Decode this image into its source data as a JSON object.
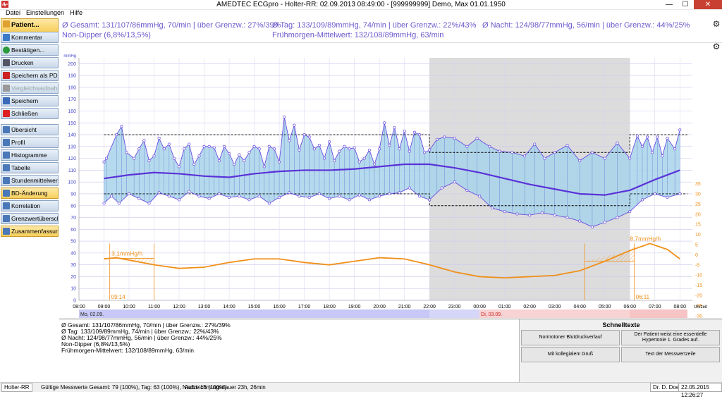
{
  "window": {
    "title": "AMEDTEC ECGpro   -   Holter-RR: 02.09.2013 08:49:00  -  [999999999] Demo, Max 01.01.1950",
    "minimize": "—",
    "maximize": "☐",
    "close": "✕"
  },
  "menu": [
    "Datei",
    "Einstellungen",
    "Hilfe"
  ],
  "sidebar": {
    "items": [
      {
        "label": "Patient...",
        "icon": "patient-icon",
        "state": "patient"
      },
      {
        "label": "Kommentar",
        "icon": "comment-icon",
        "state": "normal"
      },
      {
        "label": "Bestätigen...",
        "icon": "check-icon",
        "state": "normal"
      },
      {
        "label": "Drucken",
        "icon": "printer-icon",
        "state": "normal"
      },
      {
        "label": "Speichern als PDF...",
        "icon": "pdf-icon",
        "state": "normal"
      },
      {
        "label": "Vergleichsaufnahm...",
        "icon": "compare-icon",
        "state": "disabled"
      },
      {
        "label": "Speichern",
        "icon": "save-icon",
        "state": "normal"
      },
      {
        "label": "Schließen",
        "icon": "close-icon",
        "state": "normal"
      },
      {
        "label": "Übersicht",
        "icon": "page-icon",
        "state": "normal"
      },
      {
        "label": "Profil",
        "icon": "page-icon",
        "state": "normal"
      },
      {
        "label": "Histogramme",
        "icon": "page-icon",
        "state": "normal"
      },
      {
        "label": "Tabelle",
        "icon": "page-icon",
        "state": "normal"
      },
      {
        "label": "Stundenmittelwerte",
        "icon": "page-icon",
        "state": "normal"
      },
      {
        "label": "BD-Änderung",
        "icon": "page-icon",
        "state": "active"
      },
      {
        "label": "Korrelation",
        "icon": "page-icon",
        "state": "normal"
      },
      {
        "label": "Grenzwertüberschr...",
        "icon": "page-icon",
        "state": "normal"
      },
      {
        "label": "Zusammenfassung",
        "icon": "page-icon",
        "state": "active"
      }
    ]
  },
  "summary": {
    "gesamt": "Ø Gesamt: 131/107/86mmHg, 70/min | über Grenzw.: 27%/39%",
    "tag": "Ø Tag: 133/109/89mmHg, 74/min | über Grenzw.: 22%/43%",
    "nacht": "Ø Nacht: 124/98/77mmHg, 56/min | über Grenzw.: 44%/25%",
    "dipper": "Non-Dipper (6,8%/13,5%)",
    "morgen": "Frühmorgen-Mittelwert: 132/108/89mmHg, 63/min"
  },
  "chart_data": {
    "type": "line",
    "left_axis_unit": "mmHg",
    "left_ticks": [
      200,
      190,
      180,
      170,
      160,
      150,
      140,
      130,
      120,
      110,
      100,
      90,
      80,
      70,
      60,
      50,
      40,
      30,
      20,
      10,
      0
    ],
    "right_ticks": [
      35,
      30,
      25,
      20,
      15,
      10,
      5,
      0,
      -5,
      -10,
      -15,
      -20,
      -25,
      -30
    ],
    "x_ticks": [
      "08:00",
      "09:00",
      "10:00",
      "11:00",
      "12:00",
      "13:00",
      "14:00",
      "15:00",
      "16:00",
      "17:00",
      "18:00",
      "19:00",
      "20:00",
      "21:00",
      "22:00",
      "23:00",
      "00:00",
      "01:00",
      "02:00",
      "03:00",
      "04:00",
      "05:00",
      "06:00",
      "07:00",
      "08:00"
    ],
    "x_axis_label": "Uhrzeit",
    "day_labels": [
      "Mo, 02.09.",
      "Di, 03.09."
    ],
    "night_start_hour": 22,
    "night_end_hour": 6,
    "day_limits": {
      "systolic": 140,
      "diastolic": 90
    },
    "night_limits": {
      "systolic": 125,
      "diastolic": 80
    },
    "systolic": [
      [
        9.0,
        117
      ],
      [
        9.1,
        120
      ],
      [
        9.5,
        140
      ],
      [
        9.7,
        147
      ],
      [
        9.9,
        125
      ],
      [
        10.2,
        120
      ],
      [
        10.4,
        128
      ],
      [
        10.6,
        135
      ],
      [
        10.8,
        118
      ],
      [
        11.0,
        122
      ],
      [
        11.2,
        137
      ],
      [
        11.4,
        128
      ],
      [
        11.6,
        132
      ],
      [
        11.8,
        120
      ],
      [
        12.0,
        113
      ],
      [
        12.2,
        128
      ],
      [
        12.4,
        132
      ],
      [
        12.6,
        115
      ],
      [
        12.8,
        122
      ],
      [
        13.0,
        130
      ],
      [
        13.2,
        130
      ],
      [
        13.4,
        129
      ],
      [
        13.6,
        118
      ],
      [
        13.8,
        130
      ],
      [
        14.0,
        124
      ],
      [
        14.2,
        115
      ],
      [
        14.4,
        123
      ],
      [
        14.6,
        118
      ],
      [
        14.8,
        125
      ],
      [
        15.0,
        130
      ],
      [
        15.2,
        128
      ],
      [
        15.4,
        113
      ],
      [
        15.6,
        130
      ],
      [
        15.8,
        128
      ],
      [
        16.0,
        117
      ],
      [
        16.2,
        155
      ],
      [
        16.4,
        135
      ],
      [
        16.6,
        148
      ],
      [
        16.8,
        127
      ],
      [
        17.0,
        140
      ],
      [
        17.2,
        138
      ],
      [
        17.4,
        128
      ],
      [
        17.6,
        131
      ],
      [
        17.8,
        120
      ],
      [
        18.0,
        134
      ],
      [
        18.2,
        118
      ],
      [
        18.4,
        126
      ],
      [
        18.6,
        130
      ],
      [
        18.8,
        128
      ],
      [
        19.0,
        129
      ],
      [
        19.2,
        117
      ],
      [
        19.4,
        120
      ],
      [
        19.6,
        127
      ],
      [
        19.8,
        115
      ],
      [
        20.0,
        128
      ],
      [
        20.2,
        150
      ],
      [
        20.4,
        131
      ],
      [
        20.6,
        146
      ],
      [
        20.8,
        128
      ],
      [
        21.0,
        143
      ],
      [
        21.2,
        126
      ],
      [
        21.4,
        142
      ],
      [
        21.6,
        140
      ],
      [
        21.8,
        125
      ],
      [
        22.0,
        127
      ],
      [
        22.3,
        136
      ],
      [
        22.6,
        138
      ],
      [
        23.0,
        137
      ],
      [
        23.5,
        130
      ],
      [
        23.9,
        137
      ],
      [
        24.4,
        130
      ],
      [
        24.8,
        126
      ],
      [
        25.3,
        125
      ],
      [
        25.8,
        122
      ],
      [
        26.2,
        132
      ],
      [
        26.6,
        120
      ],
      [
        27.0,
        125
      ],
      [
        27.5,
        131
      ],
      [
        28.0,
        118
      ],
      [
        28.5,
        125
      ],
      [
        29.0,
        120
      ],
      [
        29.5,
        133
      ],
      [
        30.0,
        120
      ],
      [
        30.3,
        139
      ],
      [
        30.5,
        130
      ],
      [
        30.7,
        138
      ],
      [
        30.9,
        125
      ],
      [
        31.1,
        138
      ],
      [
        31.3,
        122
      ],
      [
        31.5,
        137
      ],
      [
        31.8,
        128
      ],
      [
        32.0,
        144
      ]
    ],
    "mean": [
      [
        9.0,
        103
      ],
      [
        10.0,
        106
      ],
      [
        11.0,
        108
      ],
      [
        12.0,
        107
      ],
      [
        13.0,
        105
      ],
      [
        14.0,
        104
      ],
      [
        15.0,
        107
      ],
      [
        16.0,
        109
      ],
      [
        17.0,
        110
      ],
      [
        18.0,
        110
      ],
      [
        19.0,
        111
      ],
      [
        20.0,
        113
      ],
      [
        21.0,
        115
      ],
      [
        22.0,
        115
      ],
      [
        23.0,
        112
      ],
      [
        24.0,
        108
      ],
      [
        25.0,
        103
      ],
      [
        26.0,
        98
      ],
      [
        27.0,
        94
      ],
      [
        28.0,
        90
      ],
      [
        29.0,
        89
      ],
      [
        30.0,
        93
      ],
      [
        31.0,
        102
      ],
      [
        32.0,
        110
      ]
    ],
    "diastolic": [
      [
        9.0,
        82
      ],
      [
        9.3,
        88
      ],
      [
        9.6,
        82
      ],
      [
        10.0,
        90
      ],
      [
        10.4,
        86
      ],
      [
        10.8,
        82
      ],
      [
        11.2,
        91
      ],
      [
        11.6,
        88
      ],
      [
        12.0,
        85
      ],
      [
        12.4,
        92
      ],
      [
        12.8,
        88
      ],
      [
        13.2,
        86
      ],
      [
        13.6,
        90
      ],
      [
        14.0,
        87
      ],
      [
        14.4,
        88
      ],
      [
        14.8,
        85
      ],
      [
        15.2,
        88
      ],
      [
        15.6,
        82
      ],
      [
        16.0,
        87
      ],
      [
        16.4,
        91
      ],
      [
        16.8,
        88
      ],
      [
        17.2,
        87
      ],
      [
        17.6,
        90
      ],
      [
        18.0,
        86
      ],
      [
        18.4,
        88
      ],
      [
        18.8,
        85
      ],
      [
        19.2,
        89
      ],
      [
        19.6,
        85
      ],
      [
        20.0,
        88
      ],
      [
        20.4,
        90
      ],
      [
        20.8,
        91
      ],
      [
        21.2,
        95
      ],
      [
        21.6,
        88
      ],
      [
        22.0,
        85
      ],
      [
        22.5,
        95
      ],
      [
        23.0,
        100
      ],
      [
        23.5,
        93
      ],
      [
        24.0,
        88
      ],
      [
        24.5,
        78
      ],
      [
        25.0,
        75
      ],
      [
        25.5,
        73
      ],
      [
        26.0,
        72
      ],
      [
        26.5,
        74
      ],
      [
        27.0,
        72
      ],
      [
        27.5,
        70
      ],
      [
        28.0,
        67
      ],
      [
        28.5,
        62
      ],
      [
        29.0,
        66
      ],
      [
        29.5,
        70
      ],
      [
        30.0,
        75
      ],
      [
        30.5,
        85
      ],
      [
        31.0,
        90
      ],
      [
        31.5,
        87
      ],
      [
        32.0,
        90
      ]
    ],
    "trend": [
      [
        9.0,
        35
      ],
      [
        9.5,
        36
      ],
      [
        10.0,
        34
      ],
      [
        11.0,
        30
      ],
      [
        12.0,
        27
      ],
      [
        13.0,
        28
      ],
      [
        14.0,
        32
      ],
      [
        15.0,
        35
      ],
      [
        16.0,
        35
      ],
      [
        17.0,
        32
      ],
      [
        18.0,
        30
      ],
      [
        19.0,
        33
      ],
      [
        20.0,
        36
      ],
      [
        21.0,
        35
      ],
      [
        22.0,
        30
      ],
      [
        23.0,
        24
      ],
      [
        24.0,
        20
      ],
      [
        25.0,
        19
      ],
      [
        26.0,
        20
      ],
      [
        27.0,
        21
      ],
      [
        28.0,
        25
      ],
      [
        29.0,
        33
      ],
      [
        30.0,
        42
      ],
      [
        30.8,
        48
      ],
      [
        31.5,
        43
      ],
      [
        32.0,
        35
      ]
    ],
    "annotations": [
      {
        "text": "3,1mmHg/h",
        "hour": 9.3
      },
      {
        "text": "8,7mmHg/h",
        "hour": 30.0
      },
      {
        "text": "09:14",
        "hour": 9.23
      },
      {
        "text": "06:11",
        "hour": 30.18
      }
    ]
  },
  "bottom_summary": [
    "Ø Gesamt: 131/107/86mmHg, 70/min | über Grenzw.: 27%/39%",
    "Ø Tag: 133/109/89mmHg, 74/min | über Grenzw.: 22%/43%",
    "Ø Nacht: 124/98/77mmHg, 56/min | über Grenzw.: 44%/25%",
    "Non-Dipper (6,8%/13,5%)",
    "Frühmorgen-Mittelwert: 132/108/89mmHg, 63/min"
  ],
  "schnelltexte": {
    "title": "Schnelltexte",
    "buttons": [
      "Normotoner Blutdruckverlauf",
      "Der Patient weist eine essentielle Hypertonie 1. Grades auf.",
      "Mit kollegialem Gruß",
      "Text der Messwertzeile"
    ]
  },
  "status": {
    "mode": "Holter-RR",
    "valid": "Gültige Messwerte Gesamt: 79 (100%), Tag: 63 (100%), Nacht: 16 (100%)",
    "duration": "Aufzeichnungsdauer 23h, 26min",
    "doctor": "Dr. D. Doe",
    "datetime": "22.05.2015 12:26:27"
  },
  "colors": {
    "accent": "#6a4be0",
    "band": "#a9d3ea",
    "trend": "#f0901a",
    "night": "#dcdcdc"
  }
}
